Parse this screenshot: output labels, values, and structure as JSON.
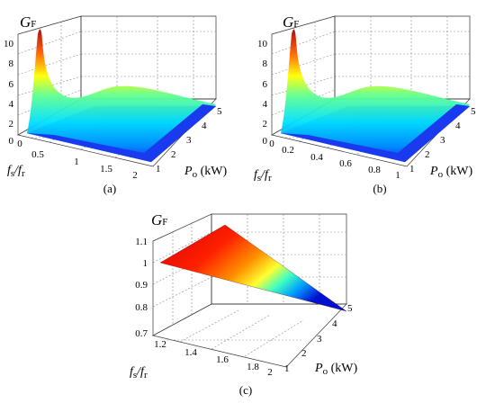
{
  "chart_data": [
    {
      "panel": "(a)",
      "type": "surface3d",
      "ylabel": "G",
      "ylabel_sub": "F",
      "xlabel": "f",
      "xlabel_sub1": "s",
      "xlabel_mid": "/f",
      "xlabel_sub2": "r",
      "zlabel": "P",
      "zlabel_sub": "o",
      "zlabel_unit": " (kW)",
      "x_ticks": [
        "0",
        "0.5",
        "1",
        "1.5",
        "2"
      ],
      "y_ticks": [
        "0",
        "2",
        "4",
        "6",
        "8",
        "10"
      ],
      "p_ticks": [
        "1",
        "2",
        "3",
        "4",
        "5"
      ],
      "xlim": [
        0,
        2
      ],
      "zlim": [
        0,
        10
      ],
      "plim": [
        1,
        5
      ],
      "peak": {
        "fs_fr": 0.05,
        "G": 10.5,
        "P": 1
      },
      "resonance": {
        "fs_fr": 1.0,
        "G": 2.3
      }
    },
    {
      "panel": "(b)",
      "type": "surface3d",
      "ylabel": "G",
      "ylabel_sub": "F",
      "xlabel": "f",
      "xlabel_sub1": "s",
      "xlabel_mid": "/f",
      "xlabel_sub2": "r",
      "zlabel": "P",
      "zlabel_sub": "o",
      "zlabel_unit": " (kW)",
      "x_ticks": [
        "0",
        "0.2",
        "0.4",
        "0.6",
        "0.8",
        "1"
      ],
      "y_ticks": [
        "0",
        "2",
        "4",
        "6",
        "8",
        "10"
      ],
      "p_ticks": [
        "1",
        "2",
        "3",
        "4",
        "5"
      ],
      "xlim": [
        0,
        1
      ],
      "zlim": [
        0,
        10
      ],
      "plim": [
        1,
        5
      ],
      "peak": {
        "fs_fr": 0.03,
        "G": 10.5,
        "P": 1
      },
      "resonance": {
        "fs_fr": 0.5,
        "G": 2.3
      }
    },
    {
      "panel": "(c)",
      "type": "surface3d",
      "ylabel": "G",
      "ylabel_sub": "F",
      "xlabel": "f",
      "xlabel_sub1": "s",
      "xlabel_mid": "/f",
      "xlabel_sub2": "r",
      "zlabel": "P",
      "zlabel_sub": "o",
      "zlabel_unit": " (kW)",
      "x_ticks": [
        "1.2",
        "1.4",
        "1.6",
        "1.8",
        "2"
      ],
      "y_ticks": [
        "0.7",
        "0.8",
        "0.9",
        "1",
        "1.1"
      ],
      "p_ticks": [
        "1",
        "2",
        "3",
        "4",
        "5"
      ],
      "xlim": [
        1.1,
        2
      ],
      "zlim": [
        0.7,
        1.15
      ],
      "plim": [
        1,
        5
      ],
      "surface_corners": {
        "G_max": 1.1,
        "G_at_low_fs": 1.0,
        "G_min": 0.8
      }
    }
  ],
  "colormap": [
    "#00008f",
    "#0000ff",
    "#0080ff",
    "#00ffff",
    "#80ff80",
    "#ffff00",
    "#ff8000",
    "#ff0000",
    "#800000"
  ]
}
